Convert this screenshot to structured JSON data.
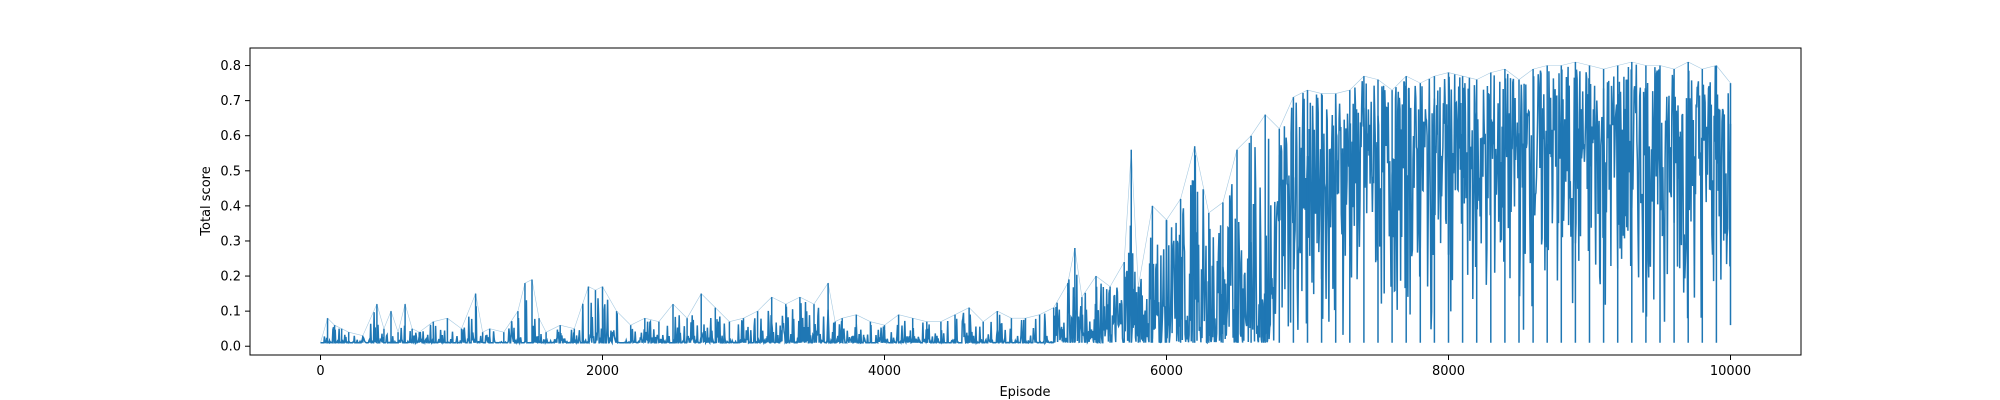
{
  "chart_data": {
    "type": "line",
    "title": "",
    "xlabel": "Episode",
    "ylabel": "Total score",
    "xlim": [
      -500,
      10500
    ],
    "ylim": [
      -0.025,
      0.85
    ],
    "xticks": [
      0,
      2000,
      4000,
      6000,
      8000,
      10000
    ],
    "yticks": [
      0.0,
      0.1,
      0.2,
      0.3,
      0.4,
      0.5,
      0.6,
      0.7,
      0.8
    ],
    "xtick_labels": [
      "0",
      "2000",
      "4000",
      "6000",
      "8000",
      "10000"
    ],
    "ytick_labels": [
      "0.0",
      "0.1",
      "0.2",
      "0.3",
      "0.4",
      "0.5",
      "0.6",
      "0.7",
      "0.8"
    ],
    "grid": false,
    "legend": null,
    "series": [
      {
        "color": "#1f77b4",
        "x": [
          0,
          50,
          100,
          150,
          200,
          300,
          400,
          450,
          500,
          550,
          600,
          650,
          700,
          800,
          900,
          1000,
          1100,
          1150,
          1200,
          1300,
          1400,
          1450,
          1500,
          1550,
          1600,
          1700,
          1800,
          1900,
          1950,
          2000,
          2100,
          2200,
          2300,
          2400,
          2500,
          2600,
          2700,
          2800,
          2900,
          3000,
          3100,
          3200,
          3300,
          3400,
          3500,
          3600,
          3650,
          3700,
          3800,
          3900,
          4000,
          4100,
          4200,
          4300,
          4400,
          4500,
          4600,
          4700,
          4800,
          4900,
          5000,
          5100,
          5200,
          5300,
          5350,
          5400,
          5500,
          5600,
          5700,
          5750,
          5800,
          5900,
          6000,
          6100,
          6200,
          6300,
          6400,
          6500,
          6600,
          6700,
          6800,
          6900,
          7000,
          7100,
          7200,
          7300,
          7400,
          7500,
          7600,
          7700,
          7800,
          7900,
          8000,
          8100,
          8200,
          8300,
          8400,
          8500,
          8600,
          8700,
          8800,
          8900,
          9000,
          9100,
          9200,
          9300,
          9400,
          9500,
          9600,
          9700,
          9800,
          9900,
          10000
        ],
        "y": [
          0.01,
          0.08,
          0.06,
          0.05,
          0.04,
          0.03,
          0.12,
          0.05,
          0.1,
          0.04,
          0.12,
          0.05,
          0.04,
          0.07,
          0.08,
          0.05,
          0.15,
          0.04,
          0.05,
          0.04,
          0.1,
          0.18,
          0.19,
          0.08,
          0.04,
          0.06,
          0.05,
          0.17,
          0.16,
          0.17,
          0.1,
          0.06,
          0.08,
          0.07,
          0.12,
          0.08,
          0.15,
          0.11,
          0.07,
          0.08,
          0.1,
          0.14,
          0.12,
          0.14,
          0.12,
          0.18,
          0.07,
          0.08,
          0.09,
          0.07,
          0.06,
          0.09,
          0.08,
          0.07,
          0.07,
          0.09,
          0.11,
          0.07,
          0.1,
          0.08,
          0.08,
          0.09,
          0.11,
          0.18,
          0.28,
          0.14,
          0.2,
          0.17,
          0.24,
          0.56,
          0.17,
          0.4,
          0.36,
          0.42,
          0.57,
          0.38,
          0.41,
          0.56,
          0.6,
          0.66,
          0.62,
          0.71,
          0.73,
          0.72,
          0.72,
          0.73,
          0.77,
          0.76,
          0.73,
          0.77,
          0.75,
          0.77,
          0.78,
          0.77,
          0.76,
          0.78,
          0.79,
          0.76,
          0.79,
          0.8,
          0.8,
          0.81,
          0.8,
          0.79,
          0.8,
          0.81,
          0.8,
          0.8,
          0.79,
          0.81,
          0.79,
          0.8,
          0.75
        ],
        "low": [
          0.01,
          0.01,
          0.01,
          0.01,
          0.01,
          0.01,
          0.01,
          0.01,
          0.01,
          0.01,
          0.01,
          0.01,
          0.01,
          0.01,
          0.01,
          0.01,
          0.01,
          0.01,
          0.01,
          0.01,
          0.01,
          0.01,
          0.01,
          0.01,
          0.01,
          0.01,
          0.01,
          0.01,
          0.01,
          0.01,
          0.01,
          0.01,
          0.01,
          0.01,
          0.01,
          0.01,
          0.01,
          0.01,
          0.01,
          0.01,
          0.01,
          0.01,
          0.01,
          0.01,
          0.01,
          0.01,
          0.01,
          0.01,
          0.01,
          0.01,
          0.01,
          0.01,
          0.01,
          0.01,
          0.01,
          0.01,
          0.01,
          0.01,
          0.01,
          0.01,
          0.01,
          0.01,
          0.01,
          0.01,
          0.01,
          0.01,
          0.01,
          0.01,
          0.01,
          0.01,
          0.01,
          0.01,
          0.01,
          0.01,
          0.01,
          0.01,
          0.01,
          0.01,
          0.01,
          0.01,
          0.01,
          0.01,
          0.01,
          0.01,
          0.01,
          0.01,
          0.01,
          0.01,
          0.01,
          0.01,
          0.01,
          0.01,
          0.01,
          0.01,
          0.01,
          0.01,
          0.01,
          0.01,
          0.01,
          0.01,
          0.01,
          0.01,
          0.01,
          0.01,
          0.01,
          0.01,
          0.01,
          0.01,
          0.01,
          0.01,
          0.01,
          0.01,
          0.06
        ]
      }
    ]
  }
}
